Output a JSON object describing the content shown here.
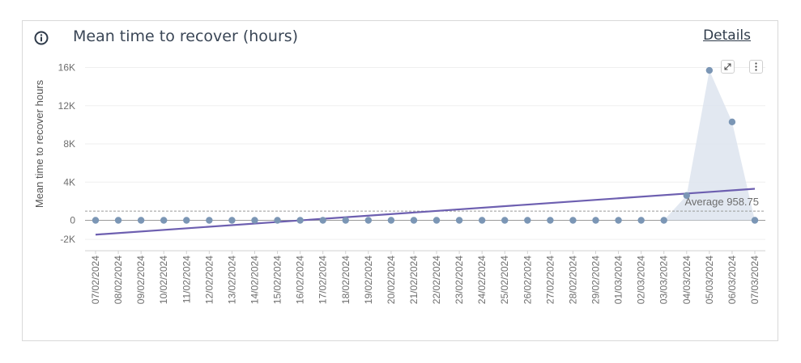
{
  "header": {
    "title": "Mean time to recover (hours)",
    "details_label": "Details"
  },
  "icons": {
    "info": "info-circle-icon",
    "expand": "expand-icon",
    "menu": "more-vertical-icon"
  },
  "colors": {
    "points": "#7b96b5",
    "trend": "#6d5fb0",
    "band": "#dde4ef",
    "title": "#3a4656"
  },
  "chart_data": {
    "type": "scatter",
    "ylabel": "Mean time to recover hours",
    "ylim": [
      -2000,
      16000
    ],
    "yticks": [
      -2000,
      0,
      4000,
      8000,
      12000,
      16000
    ],
    "ytick_labels": [
      "-2K",
      "0",
      "4K",
      "8K",
      "12K",
      "16K"
    ],
    "grid": true,
    "categories": [
      "07/02/2024",
      "08/02/2024",
      "09/02/2024",
      "10/02/2024",
      "11/02/2024",
      "12/02/2024",
      "13/02/2024",
      "14/02/2024",
      "15/02/2024",
      "16/02/2024",
      "17/02/2024",
      "18/02/2024",
      "19/02/2024",
      "20/02/2024",
      "21/02/2024",
      "22/02/2024",
      "23/02/2024",
      "24/02/2024",
      "25/02/2024",
      "26/02/2024",
      "27/02/2024",
      "28/02/2024",
      "29/02/2024",
      "01/03/2024",
      "02/03/2024",
      "03/03/2024",
      "04/03/2024",
      "05/03/2024",
      "06/03/2024",
      "07/03/2024"
    ],
    "values": [
      0,
      0,
      0,
      0,
      0,
      0,
      0,
      0,
      0,
      0,
      0,
      0,
      0,
      0,
      0,
      0,
      0,
      0,
      0,
      0,
      0,
      0,
      0,
      0,
      0,
      0,
      2600,
      15700,
      10300,
      0
    ],
    "trendline": {
      "start": -1500,
      "end": 3300
    },
    "average": {
      "value": 958.75,
      "label": "Average 958.75"
    }
  }
}
